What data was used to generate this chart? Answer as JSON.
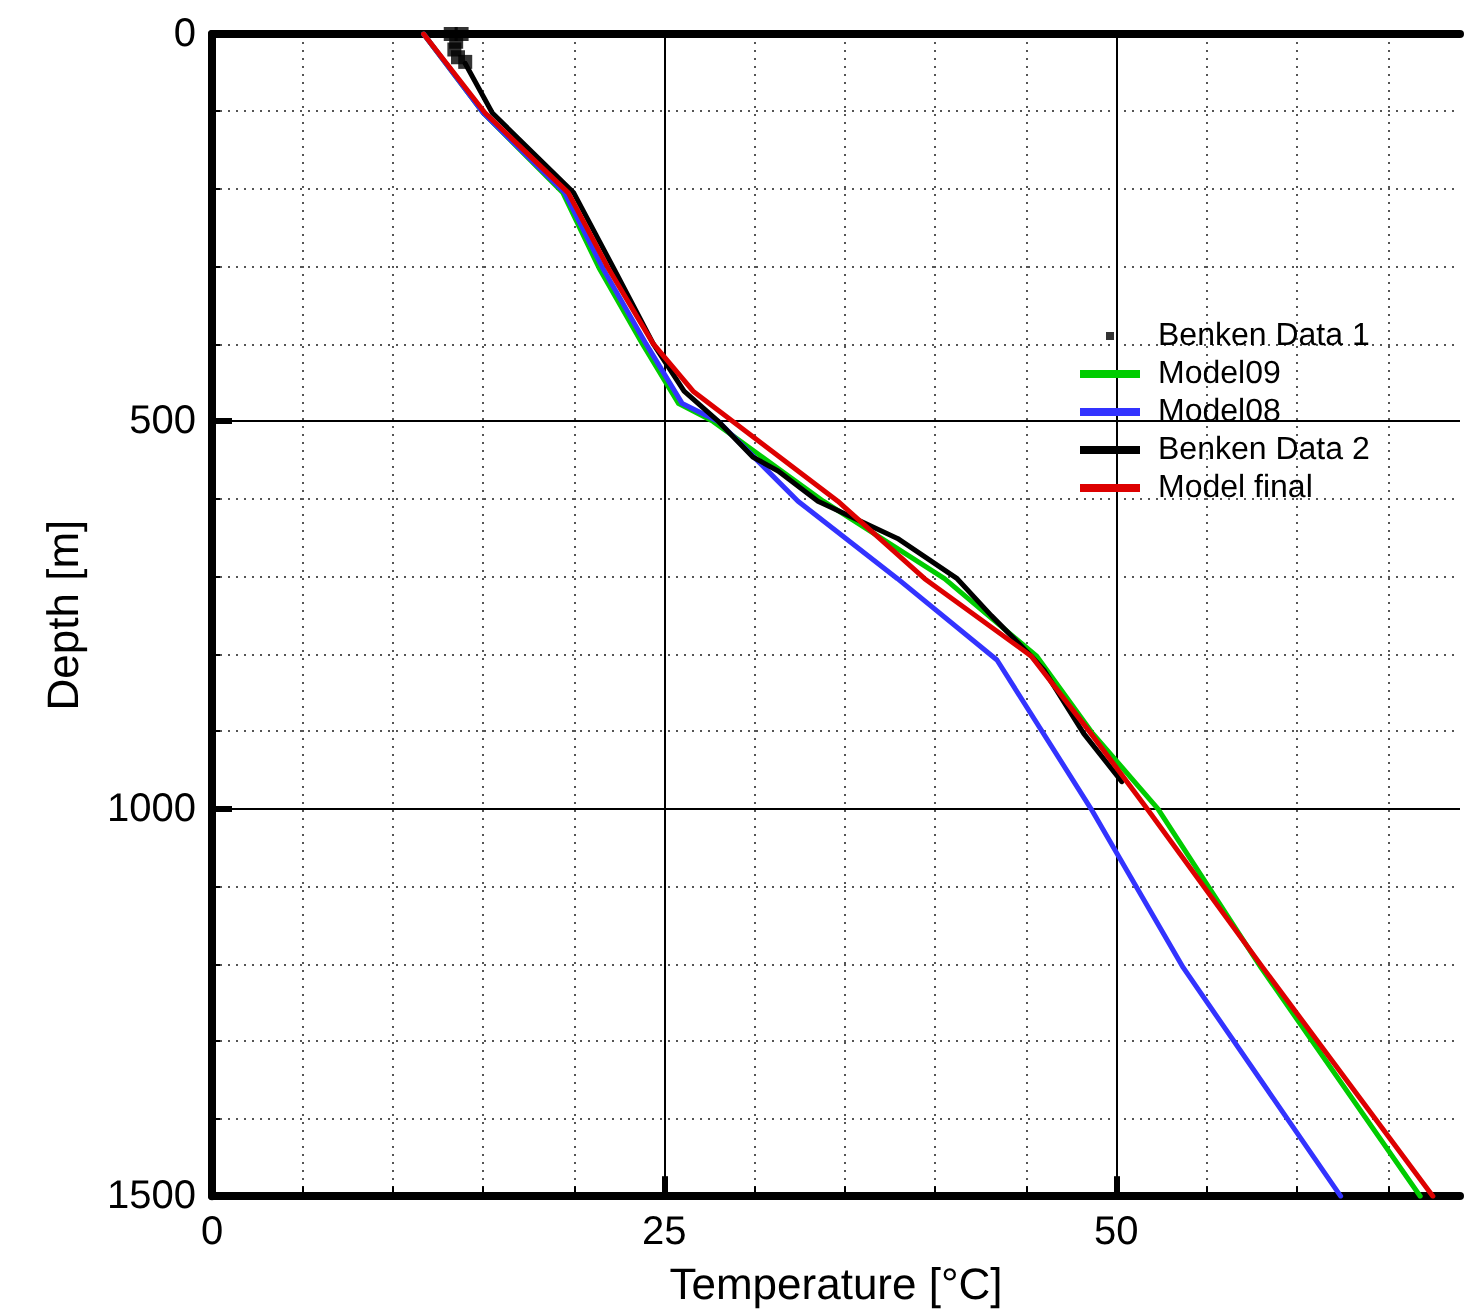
{
  "chart_data": {
    "type": "line",
    "xlabel": "Temperature [°C]",
    "ylabel": "Depth [m]",
    "xlim": [
      0,
      69
    ],
    "ylim": [
      1500,
      0
    ],
    "xticks": [
      0,
      {
        "value": 5,
        "label": null
      },
      {
        "value": 10,
        "label": null
      },
      {
        "value": 15,
        "label": null
      },
      {
        "value": 20,
        "label": null
      },
      25,
      {
        "value": 30,
        "label": null
      },
      {
        "value": 35,
        "label": null
      },
      {
        "value": 40,
        "label": null
      },
      {
        "value": 45,
        "label": null
      },
      50,
      {
        "value": 55,
        "label": null
      },
      {
        "value": 60,
        "label": null
      },
      {
        "value": 65,
        "label": null
      }
    ],
    "yticks": [
      0,
      {
        "value": 100,
        "label": null
      },
      {
        "value": 200,
        "label": null
      },
      {
        "value": 300,
        "label": null
      },
      {
        "value": 400,
        "label": null
      },
      500,
      {
        "value": 600,
        "label": null
      },
      {
        "value": 700,
        "label": null
      },
      {
        "value": 800,
        "label": null
      },
      {
        "value": 900,
        "label": null
      },
      1000,
      {
        "value": 1100,
        "label": null
      },
      {
        "value": 1200,
        "label": null
      },
      {
        "value": 1300,
        "label": null
      },
      {
        "value": 1400,
        "label": null
      },
      1500
    ],
    "grid": true,
    "legend": "top right",
    "marker": "none",
    "line_style": "solid",
    "series": [
      {
        "name": "Benken Data 1",
        "type": "scatter",
        "marker": "square",
        "color": "#000000",
        "x": [
          13.2,
          13.8,
          13.5,
          13.4,
          13.6,
          14.0
        ],
        "values": [
          0,
          0,
          10,
          20,
          30,
          36
        ]
      },
      {
        "name": "Model09",
        "color": "#00cc00",
        "x": [
          11.7,
          15.0,
          19.4,
          21.4,
          23.8,
          25.8,
          27.7,
          33.8,
          40.5,
          45.6,
          48.7,
          52.3,
          58.0,
          66.8
        ],
        "values": [
          0,
          102,
          205,
          302,
          400,
          477,
          500,
          603,
          703,
          803,
          903,
          1000,
          1205,
          1500
        ]
      },
      {
        "name": "Model08",
        "color": "#3333ff",
        "x": [
          11.7,
          15.0,
          19.5,
          21.6,
          24.0,
          26.0,
          28.0,
          32.4,
          37.9,
          43.4,
          48.6,
          53.7,
          62.4
        ],
        "values": [
          0,
          102,
          205,
          302,
          400,
          477,
          500,
          603,
          703,
          808,
          1000,
          1205,
          1500
        ]
      },
      {
        "name": "Benken Data 2",
        "color": "#000000",
        "x": [
          14.0,
          15.5,
          20.0,
          22.2,
          24.4,
          26.1,
          28.0,
          29.9,
          31.3,
          33.5,
          37.9,
          41.2,
          43.1,
          45.3,
          46.0,
          48.2,
          50.3
        ],
        "values": [
          38,
          102,
          205,
          302,
          400,
          461,
          500,
          546,
          564,
          603,
          651,
          703,
          751,
          803,
          821,
          903,
          965
        ]
      },
      {
        "name": "Model final",
        "color": "#dd0000",
        "x": [
          11.7,
          15.1,
          19.7,
          21.9,
          24.4,
          26.6,
          28.8,
          34.6,
          39.4,
          45.3,
          48.6,
          51.7,
          58.1,
          67.5
        ],
        "values": [
          0,
          102,
          205,
          302,
          400,
          461,
          500,
          603,
          703,
          803,
          903,
          1000,
          1205,
          1500
        ]
      }
    ]
  }
}
